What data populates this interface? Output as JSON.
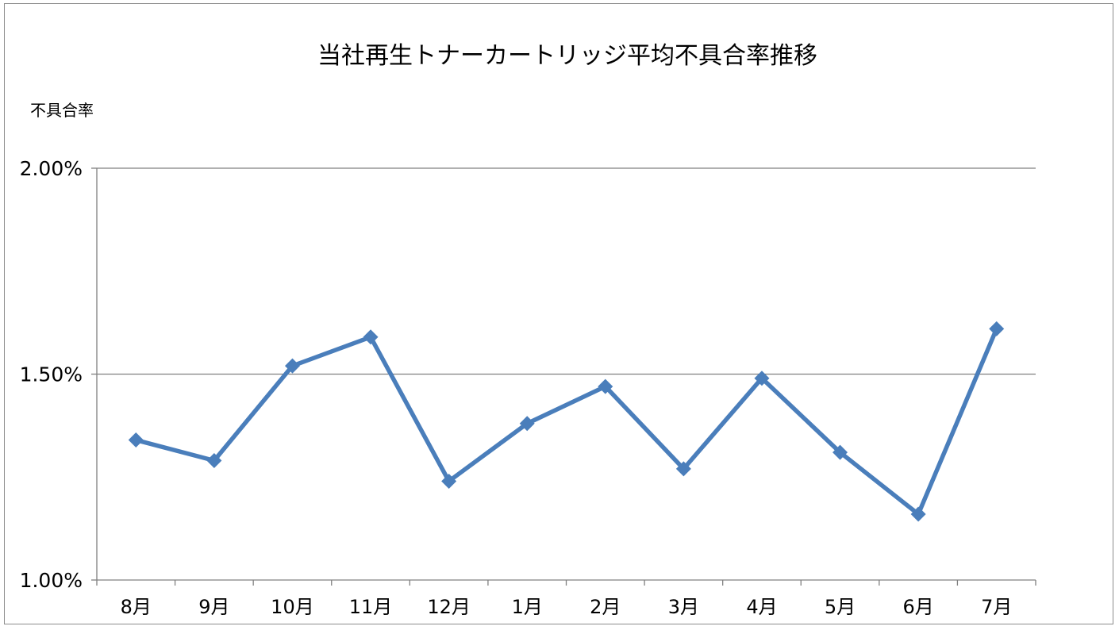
{
  "chart_data": {
    "type": "line",
    "title": "当社再生トナーカートリッジ平均不具合率推移",
    "ylabel": "不具合率",
    "xlabel": "",
    "categories": [
      "8月",
      "9月",
      "10月",
      "11月",
      "12月",
      "1月",
      "2月",
      "3月",
      "4月",
      "5月",
      "6月",
      "7月"
    ],
    "series": [
      {
        "values": [
          1.34,
          1.29,
          1.52,
          1.59,
          1.24,
          1.38,
          1.47,
          1.27,
          1.49,
          1.31,
          1.16,
          1.61
        ]
      }
    ],
    "ylim": [
      1.0,
      2.0
    ],
    "yticks": [
      1.0,
      1.5,
      2.0
    ],
    "ytick_labels": [
      "1.00%",
      "1.50%",
      "2.00%"
    ],
    "grid": "horizontal",
    "legend": "none",
    "marker": "diamond",
    "colors": {
      "series": "#4a7ebb",
      "grid": "#808080",
      "axis": "#808080",
      "border": "#8c8c8c"
    }
  }
}
